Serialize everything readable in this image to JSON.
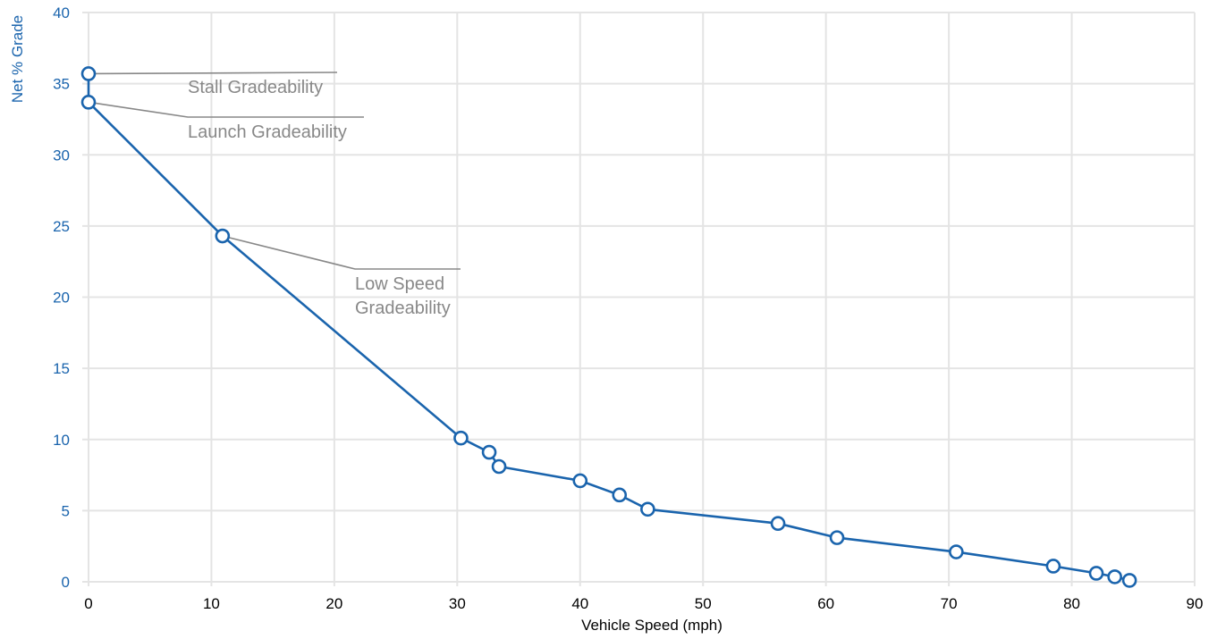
{
  "chart_data": {
    "type": "line",
    "xlabel": "Vehicle Speed (mph)",
    "ylabel": "Net % Grade",
    "xlim": [
      0,
      90
    ],
    "ylim": [
      0,
      40
    ],
    "x_ticks": [
      0,
      10,
      20,
      30,
      40,
      50,
      60,
      70,
      80,
      90
    ],
    "y_ticks": [
      0,
      5,
      10,
      15,
      20,
      25,
      30,
      35,
      40
    ],
    "grid": true,
    "colors": {
      "series": "#1a64ad",
      "annotation": "#888888",
      "ylabel": "#1a64ad"
    },
    "series": [
      {
        "points": [
          {
            "x": 0,
            "y": 35.7
          },
          {
            "x": 0,
            "y": 33.7
          },
          {
            "x": 10.9,
            "y": 24.3
          },
          {
            "x": 30.3,
            "y": 10.1
          },
          {
            "x": 32.6,
            "y": 9.1
          },
          {
            "x": 33.4,
            "y": 8.1
          },
          {
            "x": 40.0,
            "y": 7.1
          },
          {
            "x": 43.2,
            "y": 6.1
          },
          {
            "x": 45.5,
            "y": 5.1
          },
          {
            "x": 56.1,
            "y": 4.1
          },
          {
            "x": 60.9,
            "y": 3.1
          },
          {
            "x": 70.6,
            "y": 2.1
          },
          {
            "x": 78.5,
            "y": 1.1
          },
          {
            "x": 82.0,
            "y": 0.6
          },
          {
            "x": 83.5,
            "y": 0.35
          },
          {
            "x": 84.7,
            "y": 0.1
          }
        ]
      }
    ],
    "annotations": [
      {
        "lines": [
          "Stall Gradeability"
        ],
        "point": {
          "x": 0,
          "y": 35.7
        }
      },
      {
        "lines": [
          "Launch Gradeability"
        ],
        "point": {
          "x": 0,
          "y": 33.7
        }
      },
      {
        "lines": [
          "Low Speed",
          "Gradeability"
        ],
        "point": {
          "x": 10.9,
          "y": 24.3
        }
      }
    ]
  }
}
